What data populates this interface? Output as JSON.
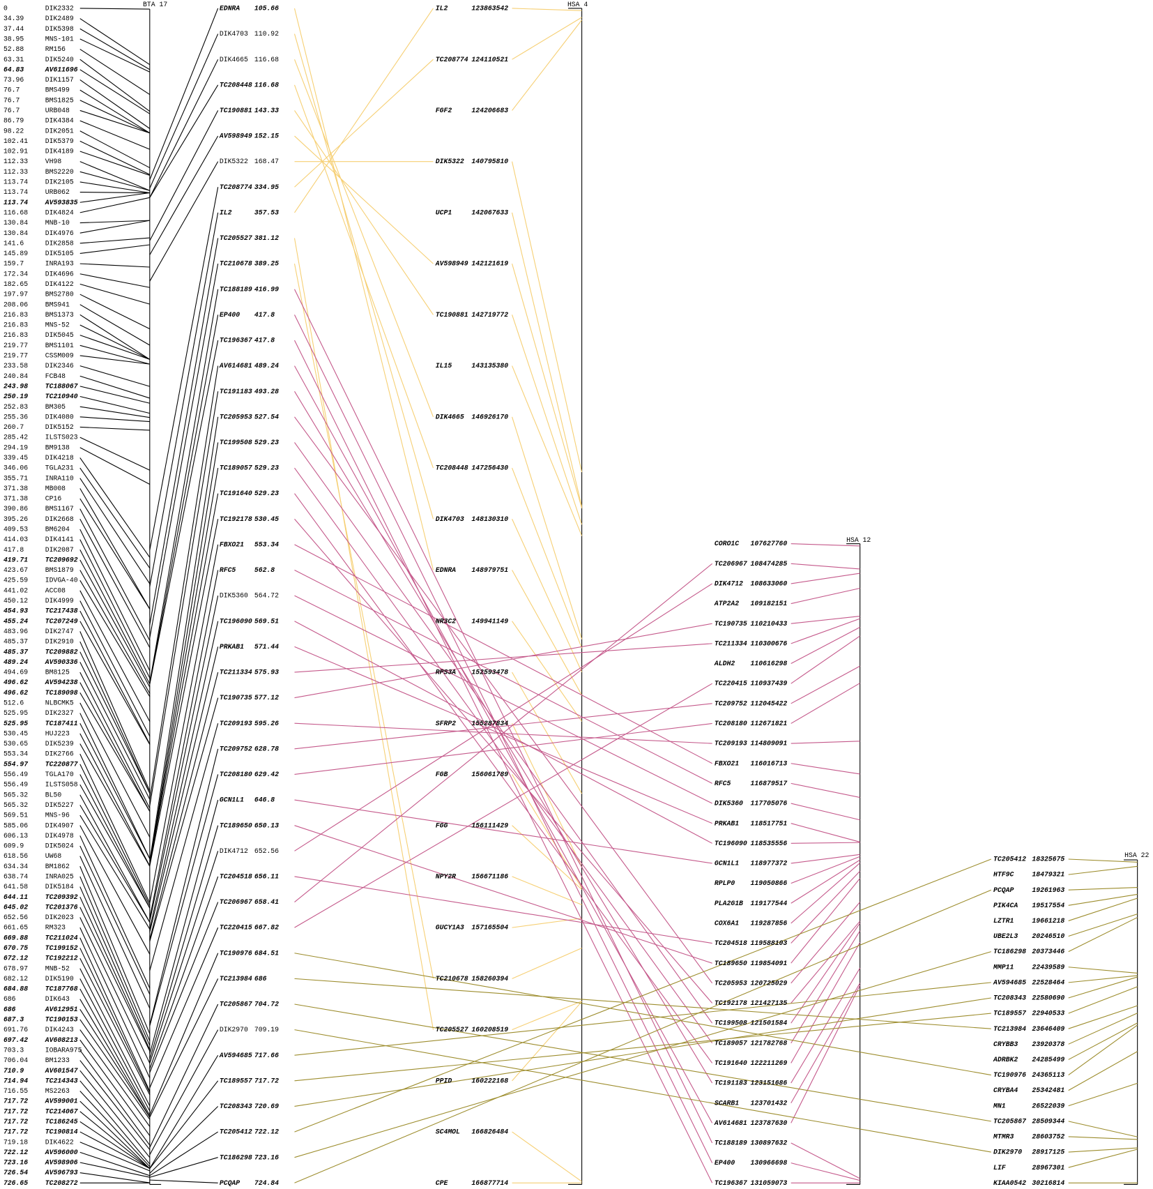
{
  "bta17": {
    "title": "BTA 17",
    "markers": [
      {
        "pos": 0,
        "name": "DIK2332"
      },
      {
        "pos": 34.39,
        "name": "DIK2489"
      },
      {
        "pos": 37.44,
        "name": "DIK5398"
      },
      {
        "pos": 38.95,
        "name": "MNS-101"
      },
      {
        "pos": 52.88,
        "name": "RM156"
      },
      {
        "pos": 63.31,
        "name": "DIK5240"
      },
      {
        "pos": 64.83,
        "name": "AV611696",
        "bold": true
      },
      {
        "pos": 73.96,
        "name": "DIK1157"
      },
      {
        "pos": 76.7,
        "name": "BMS499"
      },
      {
        "pos": 76.7,
        "name": "BMS1825"
      },
      {
        "pos": 76.7,
        "name": "URB048"
      },
      {
        "pos": 86.79,
        "name": "DIK4384"
      },
      {
        "pos": 98.22,
        "name": "DIK2051"
      },
      {
        "pos": 102.41,
        "name": "DIK5379"
      },
      {
        "pos": 102.91,
        "name": "DIK4189"
      },
      {
        "pos": 112.33,
        "name": "VH98"
      },
      {
        "pos": 112.33,
        "name": "BMS2220"
      },
      {
        "pos": 113.74,
        "name": "DIK2105"
      },
      {
        "pos": 113.74,
        "name": "URB062"
      },
      {
        "pos": 113.74,
        "name": "AV593835",
        "bold": true
      },
      {
        "pos": 116.68,
        "name": "DIK4824"
      },
      {
        "pos": 130.84,
        "name": "MNB-10"
      },
      {
        "pos": 130.84,
        "name": "DIK4976"
      },
      {
        "pos": 141.6,
        "name": "DIK2858"
      },
      {
        "pos": 145.89,
        "name": "DIK5105"
      },
      {
        "pos": 159.7,
        "name": "INRA193"
      },
      {
        "pos": 172.34,
        "name": "DIK4696"
      },
      {
        "pos": 182.65,
        "name": "DIK4122"
      },
      {
        "pos": 197.97,
        "name": "BMS2780"
      },
      {
        "pos": 208.06,
        "name": "BMS941"
      },
      {
        "pos": 216.83,
        "name": "BMS1373"
      },
      {
        "pos": 216.83,
        "name": "MNS-52"
      },
      {
        "pos": 216.83,
        "name": "DIK5045"
      },
      {
        "pos": 219.77,
        "name": "BMS1101"
      },
      {
        "pos": 219.77,
        "name": "CSSM009"
      },
      {
        "pos": 233.58,
        "name": "DIK2346"
      },
      {
        "pos": 240.84,
        "name": "FCB48"
      },
      {
        "pos": 243.98,
        "name": "TC188067",
        "bold": true
      },
      {
        "pos": 250.19,
        "name": "TC210940",
        "bold": true
      },
      {
        "pos": 252.83,
        "name": "BM305"
      },
      {
        "pos": 255.36,
        "name": "DIK4080"
      },
      {
        "pos": 260.7,
        "name": "DIK5152"
      },
      {
        "pos": 285.42,
        "name": "ILSTS023"
      },
      {
        "pos": 294.19,
        "name": "BM9138"
      },
      {
        "pos": 339.45,
        "name": "DIK4218"
      },
      {
        "pos": 346.06,
        "name": "TGLA231"
      },
      {
        "pos": 355.71,
        "name": "INRA110"
      },
      {
        "pos": 371.38,
        "name": "MB008"
      },
      {
        "pos": 371.38,
        "name": "CP16"
      },
      {
        "pos": 390.86,
        "name": "BMS1167"
      },
      {
        "pos": 395.26,
        "name": "DIK2668"
      },
      {
        "pos": 409.53,
        "name": "BM6204"
      },
      {
        "pos": 414.03,
        "name": "DIK4141"
      },
      {
        "pos": 417.8,
        "name": "DIK2087"
      },
      {
        "pos": 419.71,
        "name": "TC209692",
        "bold": true
      },
      {
        "pos": 423.67,
        "name": "BMS1879"
      },
      {
        "pos": 425.59,
        "name": "IDVGA-40"
      },
      {
        "pos": 441.02,
        "name": "ACC08"
      },
      {
        "pos": 450.12,
        "name": "DIK4999"
      },
      {
        "pos": 454.93,
        "name": "TC217438",
        "bold": true
      },
      {
        "pos": 455.24,
        "name": "TC207249",
        "bold": true
      },
      {
        "pos": 483.96,
        "name": "DIK2747"
      },
      {
        "pos": 485.37,
        "name": "DIK2910"
      },
      {
        "pos": 485.37,
        "name": "TC209882",
        "bold": true
      },
      {
        "pos": 489.24,
        "name": "AV590336",
        "bold": true
      },
      {
        "pos": 494.69,
        "name": "BM8125"
      },
      {
        "pos": 496.62,
        "name": "AV594238",
        "bold": true
      },
      {
        "pos": 496.62,
        "name": "TC189098",
        "bold": true
      },
      {
        "pos": 512.6,
        "name": "NLBCMK5"
      },
      {
        "pos": 525.95,
        "name": "DIK2327"
      },
      {
        "pos": 525.95,
        "name": "TC187411",
        "bold": true
      },
      {
        "pos": 530.45,
        "name": "HUJ223"
      },
      {
        "pos": 530.65,
        "name": "DIK5239"
      },
      {
        "pos": 553.34,
        "name": "DIK2766"
      },
      {
        "pos": 554.97,
        "name": "TC220877",
        "bold": true
      },
      {
        "pos": 556.49,
        "name": "TGLA170"
      },
      {
        "pos": 556.49,
        "name": "ILSTS058"
      },
      {
        "pos": 565.32,
        "name": "BL50"
      },
      {
        "pos": 565.32,
        "name": "DIK5227"
      },
      {
        "pos": 569.51,
        "name": "MNS-96"
      },
      {
        "pos": 585.06,
        "name": "DIK4907"
      },
      {
        "pos": 606.13,
        "name": "DIK4978"
      },
      {
        "pos": 609.9,
        "name": "DIK5024"
      },
      {
        "pos": 618.56,
        "name": "UW68"
      },
      {
        "pos": 634.34,
        "name": "BM1862"
      },
      {
        "pos": 638.74,
        "name": "INRA025"
      },
      {
        "pos": 641.58,
        "name": "DIK5184"
      },
      {
        "pos": 644.11,
        "name": "TC209392",
        "bold": true
      },
      {
        "pos": 645.02,
        "name": "TC201376",
        "bold": true
      },
      {
        "pos": 652.56,
        "name": "DIK2023"
      },
      {
        "pos": 661.65,
        "name": "RM323"
      },
      {
        "pos": 669.88,
        "name": "TC211024",
        "bold": true
      },
      {
        "pos": 670.75,
        "name": "TC199152",
        "bold": true
      },
      {
        "pos": 672.12,
        "name": "TC192212",
        "bold": true
      },
      {
        "pos": 678.97,
        "name": "MNB-52"
      },
      {
        "pos": 682.12,
        "name": "DIK5190"
      },
      {
        "pos": 684.88,
        "name": "TC187768",
        "bold": true
      },
      {
        "pos": 686,
        "name": "DIK643"
      },
      {
        "pos": 686,
        "name": "AV612951",
        "bold": true
      },
      {
        "pos": 687.3,
        "name": "TC190153",
        "bold": true
      },
      {
        "pos": 691.76,
        "name": "DIK4243"
      },
      {
        "pos": 697.42,
        "name": "AV608213",
        "bold": true
      },
      {
        "pos": 703.3,
        "name": "IOBARA975"
      },
      {
        "pos": 706.04,
        "name": "BM1233"
      },
      {
        "pos": 710.9,
        "name": "AV601547",
        "bold": true
      },
      {
        "pos": 714.94,
        "name": "TC214343",
        "bold": true
      },
      {
        "pos": 716.55,
        "name": "MS2263"
      },
      {
        "pos": 717.72,
        "name": "AV599001",
        "bold": true
      },
      {
        "pos": 717.72,
        "name": "TC214067",
        "bold": true
      },
      {
        "pos": 717.72,
        "name": "TC186245",
        "bold": true
      },
      {
        "pos": 717.72,
        "name": "TC190814",
        "bold": true
      },
      {
        "pos": 719.18,
        "name": "DIK4622"
      },
      {
        "pos": 722.12,
        "name": "AV596000",
        "bold": true
      },
      {
        "pos": 723.16,
        "name": "AV598906",
        "bold": true
      },
      {
        "pos": 726.54,
        "name": "AV596793",
        "bold": true
      },
      {
        "pos": 726.65,
        "name": "TC208272",
        "bold": true
      }
    ]
  },
  "comparative": [
    {
      "name": "EDNRA",
      "pos": 105.66,
      "bold": true
    },
    {
      "name": "DIK4703",
      "pos": 110.92
    },
    {
      "name": "DIK4665",
      "pos": 116.68
    },
    {
      "name": "TC208448",
      "pos": 116.68,
      "bold": true
    },
    {
      "name": "TC190881",
      "pos": 143.33,
      "bold": true
    },
    {
      "name": "AV598949",
      "pos": 152.15,
      "bold": true
    },
    {
      "name": "DIK5322",
      "pos": 168.47
    },
    {
      "name": "TC208774",
      "pos": 334.95,
      "bold": true
    },
    {
      "name": "IL2",
      "pos": 357.53,
      "bold": true
    },
    {
      "name": "TC205527",
      "pos": 381.12,
      "bold": true
    },
    {
      "name": "TC210678",
      "pos": 389.25,
      "bold": true
    },
    {
      "name": "TC188189",
      "pos": 416.99,
      "bold": true
    },
    {
      "name": "EP400",
      "pos": 417.8,
      "bold": true
    },
    {
      "name": "TC196367",
      "pos": 417.8,
      "bold": true
    },
    {
      "name": "AV614681",
      "pos": 489.24,
      "bold": true
    },
    {
      "name": "TC191183",
      "pos": 493.28,
      "bold": true
    },
    {
      "name": "TC205953",
      "pos": 527.54,
      "bold": true
    },
    {
      "name": "TC199508",
      "pos": 529.23,
      "bold": true
    },
    {
      "name": "TC189057",
      "pos": 529.23,
      "bold": true
    },
    {
      "name": "TC191640",
      "pos": 529.23,
      "bold": true
    },
    {
      "name": "TC192178",
      "pos": 530.45,
      "bold": true
    },
    {
      "name": "FBXO21",
      "pos": 553.34,
      "bold": true
    },
    {
      "name": "RFC5",
      "pos": 562.8,
      "bold": true
    },
    {
      "name": "DIK5360",
      "pos": 564.72
    },
    {
      "name": "TC196090",
      "pos": 569.51,
      "bold": true
    },
    {
      "name": "PRKAB1",
      "pos": 571.44,
      "bold": true
    },
    {
      "name": "TC211334",
      "pos": 575.93,
      "bold": true
    },
    {
      "name": "TC190735",
      "pos": 577.12,
      "bold": true
    },
    {
      "name": "TC209193",
      "pos": 595.26,
      "bold": true
    },
    {
      "name": "TC209752",
      "pos": 628.78,
      "bold": true
    },
    {
      "name": "TC208180",
      "pos": 629.42,
      "bold": true
    },
    {
      "name": "GCN1L1",
      "pos": 646.8,
      "bold": true
    },
    {
      "name": "TC189650",
      "pos": 650.13,
      "bold": true
    },
    {
      "name": "DIK4712",
      "pos": 652.56
    },
    {
      "name": "TC204518",
      "pos": 656.11,
      "bold": true
    },
    {
      "name": "TC206967",
      "pos": 658.41,
      "bold": true
    },
    {
      "name": "TC220415",
      "pos": 667.82,
      "bold": true
    },
    {
      "name": "TC190976",
      "pos": 684.51,
      "bold": true
    },
    {
      "name": "TC213984",
      "pos": 686,
      "bold": true
    },
    {
      "name": "TC205867",
      "pos": 704.72,
      "bold": true
    },
    {
      "name": "DIK2970",
      "pos": 709.19
    },
    {
      "name": "AV594685",
      "pos": 717.66,
      "bold": true
    },
    {
      "name": "TC189557",
      "pos": 717.72,
      "bold": true
    },
    {
      "name": "TC208343",
      "pos": 720.69,
      "bold": true
    },
    {
      "name": "TC205412",
      "pos": 722.12,
      "bold": true
    },
    {
      "name": "TC186298",
      "pos": 723.16,
      "bold": true
    },
    {
      "name": "PCQAP",
      "pos": 724.84,
      "bold": true
    }
  ],
  "hsa": [
    {
      "title": "HSA 4",
      "color": "#f6cf73",
      "genes": [
        {
          "name": "IL2",
          "pos": 123863542
        },
        {
          "name": "TC208774",
          "pos": 124110521
        },
        {
          "name": "FGF2",
          "pos": 124206683
        },
        {
          "name": "DIK5322",
          "pos": 140795810
        },
        {
          "name": "UCP1",
          "pos": 142067633
        },
        {
          "name": "AV598949",
          "pos": 142121619
        },
        {
          "name": "TC190881",
          "pos": 142719772
        },
        {
          "name": "IL15",
          "pos": 143135380
        },
        {
          "name": "DIK4665",
          "pos": 146926170
        },
        {
          "name": "TC208448",
          "pos": 147256430
        },
        {
          "name": "DIK4703",
          "pos": 148130310
        },
        {
          "name": "EDNRA",
          "pos": 148979751
        },
        {
          "name": "NR3C2",
          "pos": 149941149
        },
        {
          "name": "RPS3A",
          "pos": 152593478
        },
        {
          "name": "SFRP2",
          "pos": 155287834
        },
        {
          "name": "FGB",
          "pos": 156061789
        },
        {
          "name": "FGG",
          "pos": 156111429
        },
        {
          "name": "NPY2R",
          "pos": 156671186
        },
        {
          "name": "GUCY1A3",
          "pos": 157165504
        },
        {
          "name": "TC210678",
          "pos": 158260394
        },
        {
          "name": "TC205527",
          "pos": 160208519
        },
        {
          "name": "PPID",
          "pos": 160222168
        },
        {
          "name": "SC4MOL",
          "pos": 166826484
        },
        {
          "name": "CPE",
          "pos": 166877714
        }
      ]
    },
    {
      "title": "HSA 12",
      "color": "#c4588a",
      "genes": [
        {
          "name": "CORO1C",
          "pos": 107627760
        },
        {
          "name": "TC206967",
          "pos": 108474285
        },
        {
          "name": "DIK4712",
          "pos": 108633060
        },
        {
          "name": "ATP2A2",
          "pos": 109182151
        },
        {
          "name": "TC190735",
          "pos": 110210433
        },
        {
          "name": "TC211334",
          "pos": 110300676
        },
        {
          "name": "ALDH2",
          "pos": 110616298
        },
        {
          "name": "TC220415",
          "pos": 110937439
        },
        {
          "name": "TC209752",
          "pos": 112045422
        },
        {
          "name": "TC208180",
          "pos": 112671821
        },
        {
          "name": "TC209193",
          "pos": 114809091
        },
        {
          "name": "FBXO21",
          "pos": 116016713
        },
        {
          "name": "RFC5",
          "pos": 116879517
        },
        {
          "name": "DIK5360",
          "pos": 117705076
        },
        {
          "name": "PRKAB1",
          "pos": 118517751
        },
        {
          "name": "TC196090",
          "pos": 118535556
        },
        {
          "name": "GCN1L1",
          "pos": 118977372
        },
        {
          "name": "RPLP0",
          "pos": 119050866
        },
        {
          "name": "PLA2G1B",
          "pos": 119177544
        },
        {
          "name": "COX6A1",
          "pos": 119287856
        },
        {
          "name": "TC204518",
          "pos": 119588103
        },
        {
          "name": "TC189650",
          "pos": 119854091
        },
        {
          "name": "TC205953",
          "pos": 120725029
        },
        {
          "name": "TC192178",
          "pos": 121427135
        },
        {
          "name": "TC199508",
          "pos": 121501584
        },
        {
          "name": "TC189057",
          "pos": 121782768
        },
        {
          "name": "TC191640",
          "pos": 122211269
        },
        {
          "name": "TC191183",
          "pos": 123151686
        },
        {
          "name": "SCARB1",
          "pos": 123701432
        },
        {
          "name": "AV614681",
          "pos": 123787630
        },
        {
          "name": "TC188189",
          "pos": 130897632
        },
        {
          "name": "EP400",
          "pos": 130966698
        },
        {
          "name": "TC196367",
          "pos": 131059073
        }
      ]
    },
    {
      "title": "HSA 22",
      "color": "#9c8c2c",
      "genes": [
        {
          "name": "TC205412",
          "pos": 18325675
        },
        {
          "name": "HTF9C",
          "pos": 18479321
        },
        {
          "name": "PCQAP",
          "pos": 19261963
        },
        {
          "name": "PIK4CA",
          "pos": 19517554
        },
        {
          "name": "LZTR1",
          "pos": 19661218
        },
        {
          "name": "UBE2L3",
          "pos": 20246510
        },
        {
          "name": "TC186298",
          "pos": 20373446
        },
        {
          "name": "MMP11",
          "pos": 22439589
        },
        {
          "name": "AV594685",
          "pos": 22528464
        },
        {
          "name": "TC208343",
          "pos": 22580690
        },
        {
          "name": "TC189557",
          "pos": 22940533
        },
        {
          "name": "TC213984",
          "pos": 23646409
        },
        {
          "name": "CRYBB3",
          "pos": 23920378
        },
        {
          "name": "ADRBK2",
          "pos": 24285499
        },
        {
          "name": "TC190976",
          "pos": 24365113
        },
        {
          "name": "CRYBA4",
          "pos": 25342481
        },
        {
          "name": "MN1",
          "pos": 26522039
        },
        {
          "name": "TC205867",
          "pos": 28509344
        },
        {
          "name": "MTMR3",
          "pos": 28603752
        },
        {
          "name": "DIK2970",
          "pos": 28917125
        },
        {
          "name": "LIF",
          "pos": 28967301
        },
        {
          "name": "KIAA0542",
          "pos": 30216814
        }
      ]
    }
  ]
}
